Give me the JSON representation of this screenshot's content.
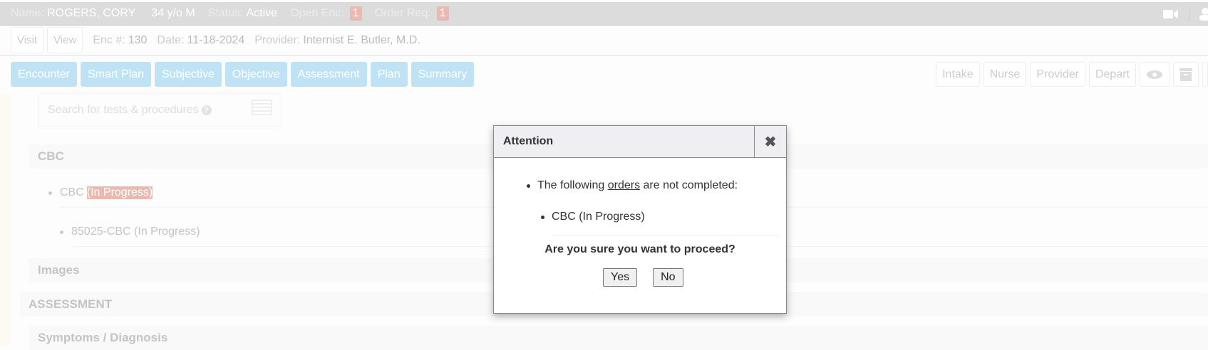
{
  "header": {
    "name_label": "Name:",
    "name": "ROGERS, CORY",
    "age_sex": "34 y/o M",
    "status_label": "Status:",
    "status": "Active",
    "open_enc_label": "Open Enc:",
    "open_enc": "1",
    "order_req_label": "Order Req:",
    "order_req": "1",
    "icons": [
      "video-camera-icon",
      "user-icon"
    ]
  },
  "encounter": {
    "visit_label": "Visit",
    "view_label": "View",
    "enc_label": "Enc #:",
    "enc": "130",
    "date_label": "Date:",
    "date": "11-18-2024",
    "provider_label": "Provider:",
    "provider": "Internist E. Butler, M.D."
  },
  "tabs": [
    "Encounter",
    "Smart Plan",
    "Subjective",
    "Objective",
    "Assessment",
    "Plan",
    "Summary"
  ],
  "right_tabs": [
    "Intake",
    "Nurse",
    "Provider",
    "Depart"
  ],
  "right_icons": [
    "eye-icon",
    "archive-icon"
  ],
  "search": {
    "placeholder": "Search for tests & procedures"
  },
  "sections": {
    "cbc": "CBC",
    "cbc_item": "CBC",
    "cbc_status": "(In Progress)",
    "cbc_sub": "85025-CBC (In Progress)",
    "images": "Images",
    "assessment": "ASSESSMENT",
    "symptoms": "Symptoms / Diagnosis"
  },
  "dialog": {
    "title": "Attention",
    "msg_pre": "The following ",
    "msg_link": "orders",
    "msg_post": " are not completed:",
    "order": "CBC (In Progress)",
    "question": "Are you sure you want to proceed?",
    "yes": "Yes",
    "no": "No"
  },
  "colors": {
    "tab": "#bfe3f4",
    "badge": "#ebb9b0",
    "highlight": "#ebb9b0"
  }
}
